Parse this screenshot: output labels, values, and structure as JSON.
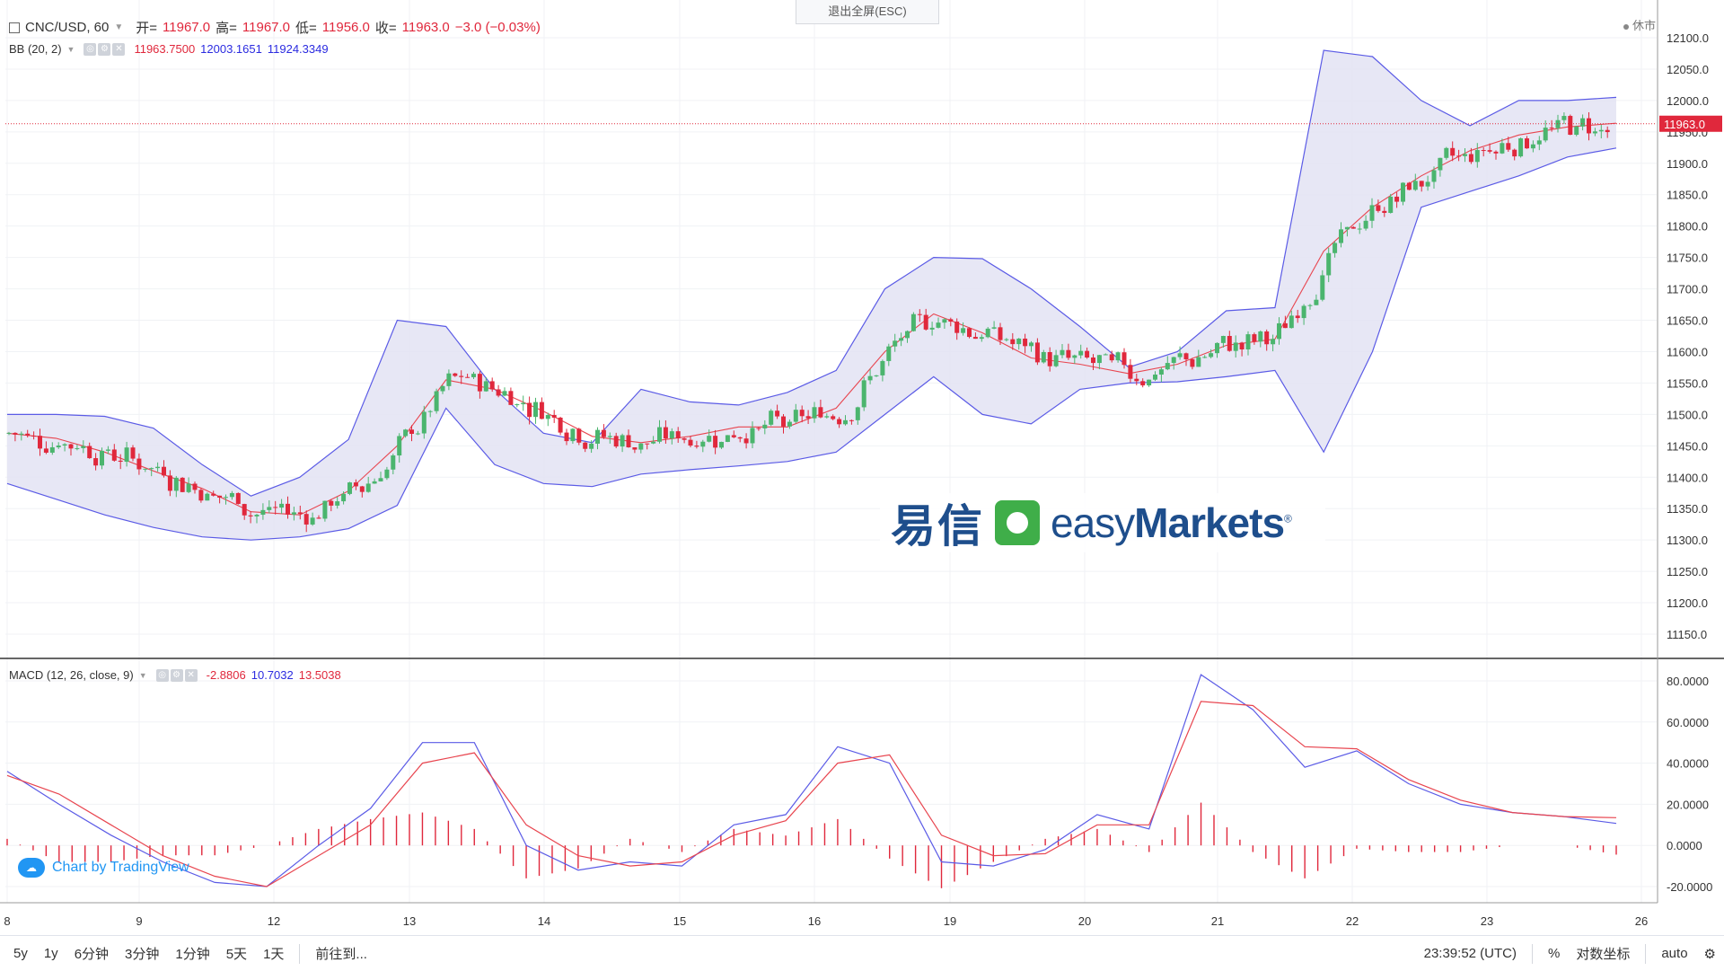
{
  "header": {
    "symbol": "CNC/USD, 60",
    "open_label": "开=",
    "open": "11967.0",
    "high_label": "高=",
    "high": "11967.0",
    "low_label": "低=",
    "low": "11956.0",
    "close_label": "收=",
    "close": "11963.0",
    "change": "−3.0 (−0.03%)",
    "exit_fullscreen": "退出全屏(ESC)",
    "market_status": "休市"
  },
  "bb_legend": {
    "label": "BB (20, 2)",
    "basis": "11963.7500",
    "upper": "12003.1651",
    "lower": "11924.3349"
  },
  "macd_legend": {
    "label": "MACD (12, 26, close, 9)",
    "histogram": "-2.8806",
    "macd": "10.7032",
    "signal": "13.5038"
  },
  "price_tag": "11963.0",
  "watermark": {
    "cn": "易信",
    "en_easy": "easy",
    "en_markets": "Markets"
  },
  "tv_badge": "Chart by TradingView",
  "toolbar": {
    "ranges": [
      "5y",
      "1y",
      "6分钟",
      "3分钟",
      "1分钟",
      "5天",
      "1天"
    ],
    "goto": "前往到...",
    "time": "23:39:52 (UTC)",
    "percent": "%",
    "log": "对数坐标",
    "auto": "auto"
  },
  "colors": {
    "up": "#4bb56e",
    "down": "#e0283c",
    "band": "#5b5be6",
    "basis": "#e8454f",
    "band_fill": "#e3e3f3",
    "macd": "#5b5be6",
    "signal": "#e8454f"
  },
  "chart_data": [
    {
      "type": "candlestick",
      "title": "CNC/USD, 60",
      "ylim": [
        11110,
        12125
      ],
      "y_ticks": [
        "12100.0",
        "12050.0",
        "12000.0",
        "11950.0",
        "11900.0",
        "11850.0",
        "11800.0",
        "11750.0",
        "11700.0",
        "11650.0",
        "11600.0",
        "11550.0",
        "11500.0",
        "11450.0",
        "11400.0",
        "11350.0",
        "11300.0",
        "11250.0",
        "11200.0",
        "11150.0"
      ],
      "x_ticks": [
        "8",
        "9",
        "12",
        "13",
        "14",
        "15",
        "16",
        "19",
        "20",
        "21",
        "22",
        "23",
        "26"
      ],
      "last_price": 11963.0,
      "series": [
        {
          "name": "BB upper",
          "points": [
            [
              0,
              11500
            ],
            [
              1,
              11500
            ],
            [
              2,
              11497
            ],
            [
              3,
              11478
            ],
            [
              4,
              11420
            ],
            [
              5,
              11370
            ],
            [
              6,
              11400
            ],
            [
              7,
              11460
            ],
            [
              8,
              11650
            ],
            [
              9,
              11640
            ],
            [
              10,
              11540
            ],
            [
              11,
              11470
            ],
            [
              12,
              11455
            ],
            [
              13,
              11540
            ],
            [
              14,
              11520
            ],
            [
              15,
              11515
            ],
            [
              16,
              11535
            ],
            [
              17,
              11570
            ],
            [
              18,
              11700
            ],
            [
              19,
              11750
            ],
            [
              20,
              11748
            ],
            [
              21,
              11700
            ],
            [
              22,
              11640
            ],
            [
              23,
              11575
            ],
            [
              24,
              11600
            ],
            [
              25,
              11665
            ],
            [
              26,
              11670
            ],
            [
              27,
              12080
            ],
            [
              28,
              12070
            ],
            [
              29,
              12000
            ],
            [
              30,
              11960
            ],
            [
              31,
              12000
            ],
            [
              32,
              12000
            ],
            [
              33,
              12005
            ]
          ]
        },
        {
          "name": "BB basis",
          "points": [
            [
              0,
              11470
            ],
            [
              1,
              11462
            ],
            [
              2,
              11440
            ],
            [
              3,
              11410
            ],
            [
              4,
              11382
            ],
            [
              5,
              11345
            ],
            [
              6,
              11340
            ],
            [
              7,
              11378
            ],
            [
              8,
              11450
            ],
            [
              9,
              11555
            ],
            [
              10,
              11540
            ],
            [
              11,
              11505
            ],
            [
              12,
              11465
            ],
            [
              13,
              11455
            ],
            [
              14,
              11465
            ],
            [
              15,
              11480
            ],
            [
              16,
              11480
            ],
            [
              17,
              11510
            ],
            [
              18,
              11600
            ],
            [
              19,
              11660
            ],
            [
              20,
              11630
            ],
            [
              21,
              11590
            ],
            [
              22,
              11580
            ],
            [
              23,
              11565
            ],
            [
              24,
              11580
            ],
            [
              25,
              11610
            ],
            [
              26,
              11620
            ],
            [
              27,
              11760
            ],
            [
              28,
              11830
            ],
            [
              29,
              11880
            ],
            [
              30,
              11920
            ],
            [
              31,
              11945
            ],
            [
              32,
              11958
            ],
            [
              33,
              11963.75
            ]
          ]
        },
        {
          "name": "BB lower",
          "points": [
            [
              0,
              11390
            ],
            [
              1,
              11365
            ],
            [
              2,
              11340
            ],
            [
              3,
              11320
            ],
            [
              4,
              11305
            ],
            [
              5,
              11300
            ],
            [
              6,
              11305
            ],
            [
              7,
              11318
            ],
            [
              8,
              11355
            ],
            [
              9,
              11510
            ],
            [
              10,
              11420
            ],
            [
              11,
              11390
            ],
            [
              12,
              11385
            ],
            [
              13,
              11405
            ],
            [
              14,
              11412
            ],
            [
              15,
              11418
            ],
            [
              16,
              11425
            ],
            [
              17,
              11440
            ],
            [
              18,
              11500
            ],
            [
              19,
              11560
            ],
            [
              20,
              11500
            ],
            [
              21,
              11485
            ],
            [
              22,
              11540
            ],
            [
              23,
              11550
            ],
            [
              24,
              11552
            ],
            [
              25,
              11560
            ],
            [
              26,
              11570
            ],
            [
              27,
              11440
            ],
            [
              28,
              11600
            ],
            [
              29,
              11830
            ],
            [
              30,
              11855
            ],
            [
              31,
              11880
            ],
            [
              32,
              11910
            ],
            [
              33,
              11924.33
            ]
          ]
        }
      ]
    },
    {
      "type": "line",
      "title": "MACD (12, 26, close, 9)",
      "ylim": [
        -25,
        88
      ],
      "y_ticks": [
        "80.0000",
        "60.0000",
        "40.0000",
        "20.0000",
        "0.0000",
        "-20.0000"
      ],
      "series": [
        {
          "name": "MACD",
          "points": [
            [
              0,
              36
            ],
            [
              1,
              20
            ],
            [
              2,
              5
            ],
            [
              3,
              -8
            ],
            [
              4,
              -18
            ],
            [
              5,
              -20
            ],
            [
              6,
              0
            ],
            [
              7,
              18
            ],
            [
              8,
              50
            ],
            [
              9,
              50
            ],
            [
              10,
              0
            ],
            [
              11,
              -12
            ],
            [
              12,
              -8
            ],
            [
              13,
              -10
            ],
            [
              14,
              10
            ],
            [
              15,
              15
            ],
            [
              16,
              48
            ],
            [
              17,
              40
            ],
            [
              18,
              -8
            ],
            [
              19,
              -10
            ],
            [
              20,
              -2
            ],
            [
              21,
              15
            ],
            [
              22,
              8
            ],
            [
              23,
              83
            ],
            [
              24,
              66
            ],
            [
              25,
              38
            ],
            [
              26,
              46
            ],
            [
              27,
              30
            ],
            [
              28,
              20
            ],
            [
              29,
              16
            ],
            [
              30,
              14
            ],
            [
              31,
              10.7
            ]
          ]
        },
        {
          "name": "Signal",
          "points": [
            [
              0,
              34
            ],
            [
              1,
              25
            ],
            [
              2,
              10
            ],
            [
              3,
              -5
            ],
            [
              4,
              -15
            ],
            [
              5,
              -20
            ],
            [
              6,
              -5
            ],
            [
              7,
              10
            ],
            [
              8,
              40
            ],
            [
              9,
              45
            ],
            [
              10,
              10
            ],
            [
              11,
              -5
            ],
            [
              12,
              -10
            ],
            [
              13,
              -8
            ],
            [
              14,
              5
            ],
            [
              15,
              12
            ],
            [
              16,
              40
            ],
            [
              17,
              44
            ],
            [
              18,
              5
            ],
            [
              19,
              -5
            ],
            [
              20,
              -4
            ],
            [
              21,
              10
            ],
            [
              22,
              10
            ],
            [
              23,
              70
            ],
            [
              24,
              68
            ],
            [
              25,
              48
            ],
            [
              26,
              47
            ],
            [
              27,
              32
            ],
            [
              28,
              22
            ],
            [
              29,
              16
            ],
            [
              30,
              14
            ],
            [
              31,
              13.5
            ]
          ]
        }
      ]
    }
  ]
}
